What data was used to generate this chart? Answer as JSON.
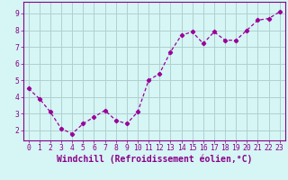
{
  "x": [
    0,
    1,
    2,
    3,
    4,
    5,
    6,
    7,
    8,
    9,
    10,
    11,
    12,
    13,
    14,
    15,
    16,
    17,
    18,
    19,
    20,
    21,
    22,
    23
  ],
  "y": [
    4.5,
    3.9,
    3.1,
    2.1,
    1.8,
    2.4,
    2.8,
    3.2,
    2.6,
    2.4,
    3.1,
    5.0,
    5.4,
    6.7,
    7.7,
    7.9,
    7.2,
    7.9,
    7.4,
    7.4,
    8.0,
    8.6,
    8.7,
    9.1
  ],
  "line_color": "#990099",
  "marker": "D",
  "marker_size": 2.2,
  "line_width": 0.9,
  "bg_color": "#d6f5f5",
  "grid_color": "#b0d0d0",
  "axis_color": "#880088",
  "xlabel": "Windchill (Refroidissement éolien,°C)",
  "ylabel": "",
  "xlim": [
    -0.5,
    23.5
  ],
  "ylim": [
    1.4,
    9.7
  ],
  "yticks": [
    2,
    3,
    4,
    5,
    6,
    7,
    8,
    9
  ],
  "xticks": [
    0,
    1,
    2,
    3,
    4,
    5,
    6,
    7,
    8,
    9,
    10,
    11,
    12,
    13,
    14,
    15,
    16,
    17,
    18,
    19,
    20,
    21,
    22,
    23
  ],
  "font_color": "#880088",
  "tick_fontsize": 5.8,
  "xlabel_fontsize": 7.0
}
